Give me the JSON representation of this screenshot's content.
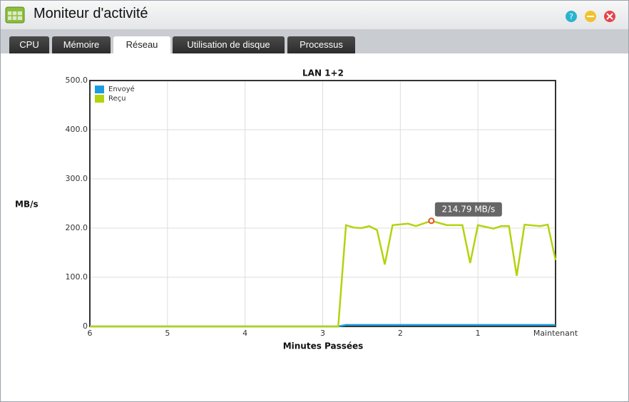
{
  "window": {
    "title": "Moniteur d'activité",
    "tabs": [
      "CPU",
      "Mémoire",
      "Réseau",
      "Utilisation de disque",
      "Processus"
    ],
    "active_tab": 2
  },
  "chart_data": {
    "type": "line",
    "title": "LAN 1+2",
    "x_label": "Minutes Passées",
    "y_label": "MB/s",
    "x": [
      6,
      2.8,
      2.7,
      2.6,
      2.5,
      2.4,
      2.3,
      2.2,
      2.1,
      1.9,
      1.8,
      1.6,
      1.4,
      1.2,
      1.1,
      1.0,
      0.8,
      0.7,
      0.6,
      0.5,
      0.4,
      0.2,
      0.1,
      0
    ],
    "series": [
      {
        "name": "Envoyé",
        "color": "#1a9de0",
        "values": [
          0,
          0,
          3,
          3,
          3,
          3,
          3,
          3,
          3,
          3,
          3,
          3,
          3,
          3,
          3,
          3,
          3,
          3,
          3,
          3,
          3,
          3,
          3,
          3
        ]
      },
      {
        "name": "Reçu",
        "color": "#b5d20e",
        "values": [
          0,
          0,
          206,
          201,
          200,
          204,
          196,
          126,
          206,
          209,
          204,
          214.79,
          206,
          206,
          129,
          206,
          199,
          204,
          204,
          103,
          207,
          204,
          207,
          135
        ]
      }
    ],
    "xlim": [
      6,
      0
    ],
    "xticks": [
      6,
      5,
      4,
      3,
      2,
      1,
      {
        "value": 0,
        "label": "Maintenant"
      }
    ],
    "ylim": [
      0,
      500
    ],
    "yticks": [
      0,
      {
        "value": 100,
        "label": "100.0"
      },
      {
        "value": 200,
        "label": "200.0"
      },
      {
        "value": 300,
        "label": "300.0"
      },
      {
        "value": 400,
        "label": "400.0"
      },
      {
        "value": 500,
        "label": "500.0"
      }
    ],
    "grid": true,
    "legend": "top-left",
    "annotation": {
      "x": 1.6,
      "value": 214.79,
      "label": "214.79 MB/s"
    }
  }
}
